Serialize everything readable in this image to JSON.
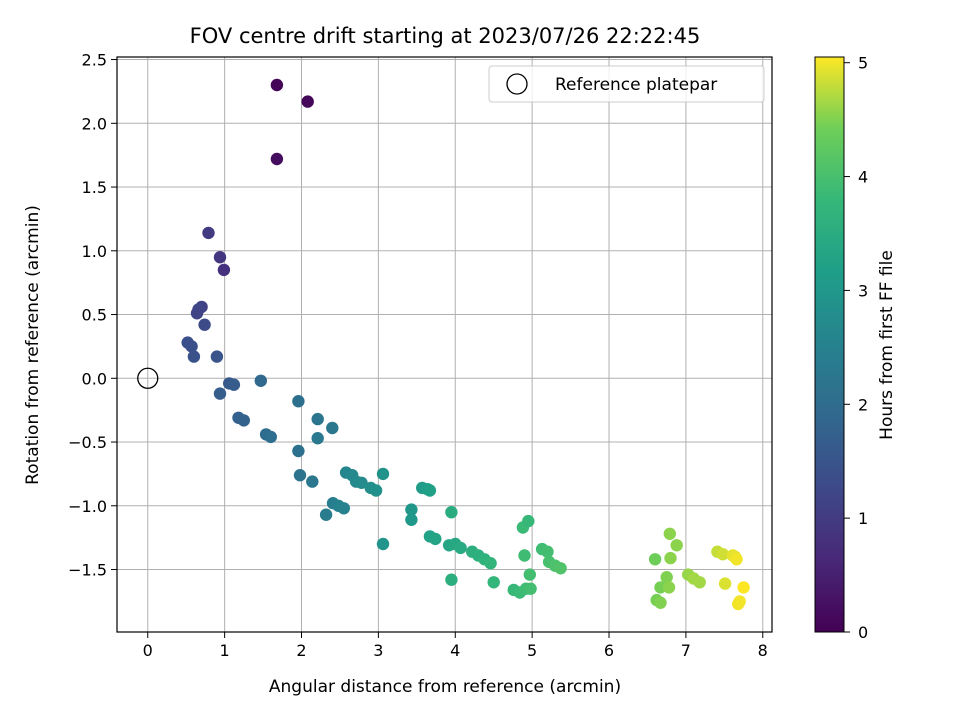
{
  "chart_data": {
    "type": "scatter",
    "title": "FOV centre drift starting at 2023/07/26 22:22:45",
    "xlabel": "Angular distance from reference (arcmin)",
    "ylabel": "Rotation from reference (arcmin)",
    "xlim": [
      -0.4,
      8.12
    ],
    "ylim": [
      -1.99,
      2.52
    ],
    "xticks": [
      0,
      1,
      2,
      3,
      4,
      5,
      6,
      7,
      8
    ],
    "yticks": [
      -1.5,
      -1.0,
      -0.5,
      0.0,
      0.5,
      1.0,
      1.5,
      2.0,
      2.5
    ],
    "xtick_labels": [
      "0",
      "1",
      "2",
      "3",
      "4",
      "5",
      "6",
      "7",
      "8"
    ],
    "ytick_labels": [
      "−1.5",
      "−1.0",
      "−0.5",
      "0.0",
      "0.5",
      "1.0",
      "1.5",
      "2.0",
      "2.5"
    ],
    "grid": true,
    "legend": {
      "position": "top-right",
      "entries": [
        "Reference platepar"
      ]
    },
    "reference_point": {
      "x": 0,
      "y": 0
    },
    "colorbar": {
      "label": "Hours from first FF file",
      "range": [
        0,
        5.05
      ],
      "ticks": [
        0,
        1,
        2,
        3,
        4,
        5
      ],
      "tick_labels": [
        "0",
        "1",
        "2",
        "3",
        "4",
        "5"
      ],
      "colormap": "viridis"
    },
    "points": [
      [
        1.68,
        2.3,
        0.05
      ],
      [
        2.08,
        2.17,
        0.1
      ],
      [
        1.68,
        1.72,
        0.2
      ],
      [
        0.79,
        1.14,
        1.0
      ],
      [
        0.94,
        0.95,
        0.9
      ],
      [
        0.99,
        0.85,
        0.8
      ],
      [
        0.7,
        0.56,
        1.1
      ],
      [
        0.66,
        0.54,
        1.2
      ],
      [
        0.64,
        0.51,
        1.15
      ],
      [
        0.74,
        0.42,
        1.3
      ],
      [
        0.52,
        0.28,
        1.4
      ],
      [
        0.57,
        0.25,
        1.4
      ],
      [
        0.6,
        0.17,
        1.45
      ],
      [
        0.9,
        0.17,
        1.5
      ],
      [
        1.06,
        -0.04,
        1.6
      ],
      [
        1.12,
        -0.05,
        1.65
      ],
      [
        0.94,
        -0.12,
        1.7
      ],
      [
        1.47,
        -0.02,
        1.9
      ],
      [
        1.18,
        -0.31,
        1.75
      ],
      [
        1.25,
        -0.33,
        1.8
      ],
      [
        1.54,
        -0.44,
        2.0
      ],
      [
        1.6,
        -0.46,
        2.05
      ],
      [
        1.96,
        -0.18,
        2.1
      ],
      [
        2.21,
        -0.32,
        2.2
      ],
      [
        2.4,
        -0.39,
        2.25
      ],
      [
        2.21,
        -0.47,
        2.3
      ],
      [
        1.96,
        -0.57,
        2.1
      ],
      [
        1.98,
        -0.76,
        2.15
      ],
      [
        2.14,
        -0.81,
        2.25
      ],
      [
        2.32,
        -1.07,
        2.35
      ],
      [
        2.41,
        -0.98,
        2.4
      ],
      [
        2.48,
        -1.0,
        2.5
      ],
      [
        2.55,
        -1.02,
        2.55
      ],
      [
        2.58,
        -0.74,
        2.6
      ],
      [
        2.66,
        -0.76,
        2.65
      ],
      [
        2.71,
        -0.81,
        2.7
      ],
      [
        2.78,
        -0.82,
        2.75
      ],
      [
        2.9,
        -0.86,
        2.8
      ],
      [
        2.97,
        -0.88,
        2.85
      ],
      [
        3.06,
        -0.75,
        2.9
      ],
      [
        3.06,
        -1.3,
        2.95
      ],
      [
        3.43,
        -1.03,
        3.0
      ],
      [
        3.43,
        -1.11,
        3.05
      ],
      [
        3.57,
        -0.86,
        3.1
      ],
      [
        3.64,
        -0.87,
        3.15
      ],
      [
        3.67,
        -0.88,
        3.2
      ],
      [
        3.67,
        -1.24,
        3.25
      ],
      [
        3.74,
        -1.26,
        3.3
      ],
      [
        3.92,
        -1.31,
        3.35
      ],
      [
        4.0,
        -1.3,
        3.4
      ],
      [
        4.07,
        -1.33,
        3.45
      ],
      [
        3.95,
        -1.05,
        3.5
      ],
      [
        3.95,
        -1.58,
        3.55
      ],
      [
        4.22,
        -1.36,
        3.55
      ],
      [
        4.3,
        -1.39,
        3.6
      ],
      [
        4.38,
        -1.42,
        3.65
      ],
      [
        4.46,
        -1.45,
        3.7
      ],
      [
        4.5,
        -1.6,
        3.75
      ],
      [
        4.76,
        -1.66,
        3.8
      ],
      [
        4.84,
        -1.68,
        3.85
      ],
      [
        4.92,
        -1.65,
        3.9
      ],
      [
        4.98,
        -1.65,
        3.95
      ],
      [
        4.97,
        -1.54,
        3.95
      ],
      [
        4.9,
        -1.39,
        3.9
      ],
      [
        4.88,
        -1.17,
        3.85
      ],
      [
        4.95,
        -1.12,
        3.8
      ],
      [
        5.13,
        -1.34,
        3.9
      ],
      [
        5.2,
        -1.36,
        3.95
      ],
      [
        5.22,
        -1.44,
        4.0
      ],
      [
        5.3,
        -1.47,
        4.05
      ],
      [
        5.37,
        -1.49,
        4.1
      ],
      [
        6.6,
        -1.42,
        4.4
      ],
      [
        6.62,
        -1.74,
        4.45
      ],
      [
        6.67,
        -1.64,
        4.45
      ],
      [
        6.67,
        -1.76,
        4.5
      ],
      [
        6.75,
        -1.56,
        4.5
      ],
      [
        6.78,
        -1.64,
        4.55
      ],
      [
        6.79,
        -1.22,
        4.55
      ],
      [
        6.8,
        -1.41,
        4.55
      ],
      [
        6.88,
        -1.31,
        4.55
      ],
      [
        7.03,
        -1.54,
        4.6
      ],
      [
        7.1,
        -1.57,
        4.65
      ],
      [
        7.18,
        -1.6,
        4.65
      ],
      [
        7.41,
        -1.36,
        4.8
      ],
      [
        7.48,
        -1.38,
        4.85
      ],
      [
        7.51,
        -1.61,
        4.9
      ],
      [
        7.61,
        -1.39,
        4.95
      ],
      [
        7.64,
        -1.4,
        4.95
      ],
      [
        7.66,
        -1.42,
        5.0
      ],
      [
        7.68,
        -1.77,
        5.0
      ],
      [
        7.7,
        -1.75,
        5.0
      ],
      [
        7.75,
        -1.64,
        5.05
      ]
    ]
  }
}
